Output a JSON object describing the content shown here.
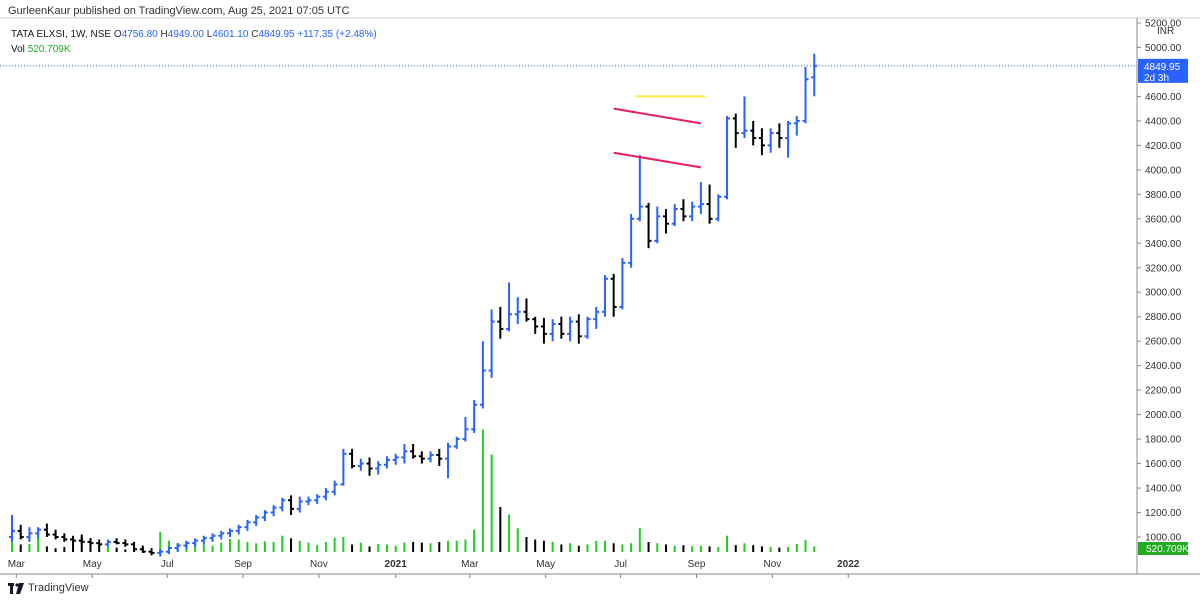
{
  "header": {
    "published": "GurleenKaur published on TradingView.com, Aug 25, 2021 07:05 UTC"
  },
  "legend": {
    "symbol": "TATA ELXSI, 1W, NSE",
    "open_label": "O",
    "open": "4756.80",
    "high_label": "H",
    "high": "4949.00",
    "low_label": "L",
    "low": "4601.10",
    "close_label": "C",
    "close": "4849.95",
    "change": "+117.35 (+2.48%)",
    "vol_label": "Vol",
    "vol_value": "520.709K"
  },
  "price_axis": {
    "currency": "INR",
    "ticks": [
      "5200.00",
      "5000.00",
      "4800.00",
      "4600.00",
      "4400.00",
      "4200.00",
      "4000.00",
      "3800.00",
      "3600.00",
      "3400.00",
      "3200.00",
      "3000.00",
      "2800.00",
      "2600.00",
      "2400.00",
      "2200.00",
      "2000.00",
      "1800.00",
      "1600.00",
      "1400.00",
      "1200.00",
      "1000.00"
    ],
    "last_price": "4849.95",
    "countdown": "2d 3h",
    "vol_badge": "520.709K"
  },
  "brand": {
    "name": "TradingView"
  },
  "colors": {
    "up": "#2962ff",
    "down": "#000000",
    "vol_up": "#22cc22",
    "vol_down": "#000000",
    "flag": "#e91e63",
    "resistance": "#ffeb3b",
    "price_badge": "#2962ff",
    "vol_badge": "#22ab22"
  },
  "chart_data": {
    "type": "ohlc",
    "ylim": [
      950,
      5250
    ],
    "x_tick_labels": [
      {
        "label": "Mar",
        "idx": 0.5
      },
      {
        "label": "May",
        "idx": 9.2
      },
      {
        "label": "Jul",
        "idx": 17.8
      },
      {
        "label": "Sep",
        "idx": 26.5
      },
      {
        "label": "Nov",
        "idx": 35.2
      },
      {
        "label": "2021",
        "idx": 44.0
      },
      {
        "label": "Mar",
        "idx": 52.5
      },
      {
        "label": "May",
        "idx": 61.2
      },
      {
        "label": "Jul",
        "idx": 69.8
      },
      {
        "label": "Sep",
        "idx": 78.5
      },
      {
        "label": "Nov",
        "idx": 87.2
      },
      {
        "label": "2022",
        "idx": 95.9
      }
    ],
    "bars": [
      [
        1000,
        1180,
        960,
        1050,
        420
      ],
      [
        1050,
        1100,
        980,
        1000,
        120
      ],
      [
        1000,
        1080,
        960,
        1030,
        130
      ],
      [
        1030,
        1080,
        990,
        1060,
        260
      ],
      [
        1060,
        1110,
        1000,
        1020,
        90
      ],
      [
        1020,
        1060,
        980,
        1000,
        60
      ],
      [
        1000,
        1030,
        960,
        980,
        80
      ],
      [
        980,
        1010,
        950,
        970,
        170
      ],
      [
        970,
        1000,
        940,
        960,
        280
      ],
      [
        960,
        990,
        930,
        950,
        220
      ],
      [
        950,
        980,
        920,
        940,
        100
      ],
      [
        940,
        980,
        920,
        960,
        80
      ],
      [
        960,
        990,
        940,
        950,
        70
      ],
      [
        950,
        980,
        920,
        940,
        40
      ],
      [
        940,
        960,
        890,
        900,
        70
      ],
      [
        900,
        930,
        870,
        880,
        80
      ],
      [
        880,
        910,
        850,
        870,
        50
      ],
      [
        870,
        900,
        840,
        880,
        320
      ],
      [
        880,
        920,
        860,
        910,
        180
      ],
      [
        910,
        950,
        880,
        930,
        140
      ],
      [
        930,
        970,
        900,
        950,
        160
      ],
      [
        950,
        990,
        920,
        970,
        140
      ],
      [
        970,
        1010,
        940,
        990,
        120
      ],
      [
        990,
        1030,
        960,
        1010,
        100
      ],
      [
        1010,
        1050,
        980,
        1030,
        150
      ],
      [
        1030,
        1070,
        1000,
        1050,
        210
      ],
      [
        1050,
        1100,
        1020,
        1080,
        200
      ],
      [
        1080,
        1140,
        1050,
        1120,
        160
      ],
      [
        1120,
        1180,
        1090,
        1160,
        140
      ],
      [
        1160,
        1220,
        1130,
        1200,
        170
      ],
      [
        1200,
        1260,
        1170,
        1240,
        160
      ],
      [
        1240,
        1320,
        1210,
        1300,
        260
      ],
      [
        1300,
        1340,
        1180,
        1230,
        220
      ],
      [
        1230,
        1330,
        1200,
        1290,
        180
      ],
      [
        1290,
        1330,
        1260,
        1300,
        150
      ],
      [
        1300,
        1350,
        1270,
        1330,
        110
      ],
      [
        1330,
        1400,
        1300,
        1370,
        160
      ],
      [
        1370,
        1460,
        1340,
        1430,
        230
      ],
      [
        1430,
        1720,
        1420,
        1680,
        240
      ],
      [
        1680,
        1720,
        1560,
        1580,
        120
      ],
      [
        1580,
        1640,
        1540,
        1600,
        150
      ],
      [
        1600,
        1650,
        1500,
        1560,
        90
      ],
      [
        1560,
        1620,
        1510,
        1590,
        130
      ],
      [
        1590,
        1660,
        1560,
        1630,
        120
      ],
      [
        1630,
        1680,
        1590,
        1650,
        100
      ]
    ],
    "bars2": [
      [
        1650,
        1760,
        1600,
        1700,
        150
      ],
      [
        1700,
        1760,
        1640,
        1660,
        160
      ],
      [
        1660,
        1700,
        1600,
        1640,
        150
      ],
      [
        1640,
        1700,
        1610,
        1670,
        140
      ],
      [
        1670,
        1720,
        1580,
        1640,
        160
      ],
      [
        1640,
        1770,
        1480,
        1740,
        180
      ],
      [
        1740,
        1820,
        1720,
        1800,
        180
      ],
      [
        1800,
        1980,
        1780,
        1880,
        200
      ],
      [
        1880,
        2120,
        1850,
        2080,
        360
      ],
      [
        2080,
        2600,
        2050,
        2360,
        1960
      ],
      [
        2360,
        2860,
        2300,
        2760,
        1560
      ],
      [
        2760,
        2880,
        2620,
        2700,
        720
      ],
      [
        2700,
        3080,
        2680,
        2820,
        600
      ],
      [
        2820,
        2960,
        2740,
        2840,
        380
      ],
      [
        2840,
        2950,
        2760,
        2780,
        240
      ],
      [
        2780,
        2800,
        2660,
        2720,
        200
      ],
      [
        2720,
        2790,
        2580,
        2660,
        180
      ],
      [
        2660,
        2780,
        2600,
        2740,
        160
      ],
      [
        2740,
        2800,
        2620,
        2660,
        120
      ],
      [
        2660,
        2800,
        2600,
        2760,
        140
      ],
      [
        2760,
        2820,
        2580,
        2640,
        100
      ],
      [
        2640,
        2800,
        2620,
        2780,
        120
      ],
      [
        2780,
        2880,
        2700,
        2840,
        180
      ],
      [
        2840,
        3140,
        2800,
        3110,
        180
      ],
      [
        3110,
        3150,
        2800,
        2880,
        140
      ],
      [
        2880,
        3280,
        2860,
        3240,
        120
      ],
      [
        3240,
        3640,
        3200,
        3600,
        140
      ],
      [
        3600,
        4120,
        3580,
        3700,
        380
      ],
      [
        3700,
        3730,
        3360,
        3420,
        160
      ],
      [
        3420,
        3700,
        3400,
        3620,
        140
      ],
      [
        3620,
        3680,
        3480,
        3560,
        120
      ],
      [
        3560,
        3720,
        3540,
        3680,
        100
      ],
      [
        3680,
        3760,
        3580,
        3620,
        110
      ],
      [
        3620,
        3740,
        3580,
        3700,
        90
      ],
      [
        3700,
        3900,
        3640,
        3720,
        100
      ],
      [
        3720,
        3880,
        3560,
        3600,
        90
      ],
      [
        3600,
        3800,
        3580,
        3780,
        80
      ],
      [
        3780,
        4440,
        3760,
        4420,
        260
      ],
      [
        4420,
        4460,
        4180,
        4300,
        110
      ],
      [
        4300,
        4600,
        4260,
        4320,
        140
      ],
      [
        4320,
        4400,
        4200,
        4260,
        110
      ],
      [
        4260,
        4340,
        4120,
        4200,
        90
      ],
      [
        4200,
        4340,
        4140,
        4300,
        80
      ],
      [
        4300,
        4380,
        4180,
        4260,
        70
      ],
      [
        4260,
        4400,
        4100,
        4380,
        80
      ],
      [
        4380,
        4440,
        4280,
        4400,
        130
      ],
      [
        4400,
        4840,
        4380,
        4740,
        190
      ],
      [
        4756.8,
        4949,
        4601.1,
        4849.95,
        90
      ]
    ],
    "flag_upper": {
      "from": [
        69.0,
        4500
      ],
      "to": [
        79.0,
        4380
      ]
    },
    "flag_lower": {
      "from": [
        69.0,
        4140
      ],
      "to": [
        79.0,
        4020
      ]
    },
    "resistance": {
      "from": [
        71.5,
        4600
      ],
      "to": [
        79.5,
        4600
      ]
    },
    "last_price": 4849.95
  }
}
